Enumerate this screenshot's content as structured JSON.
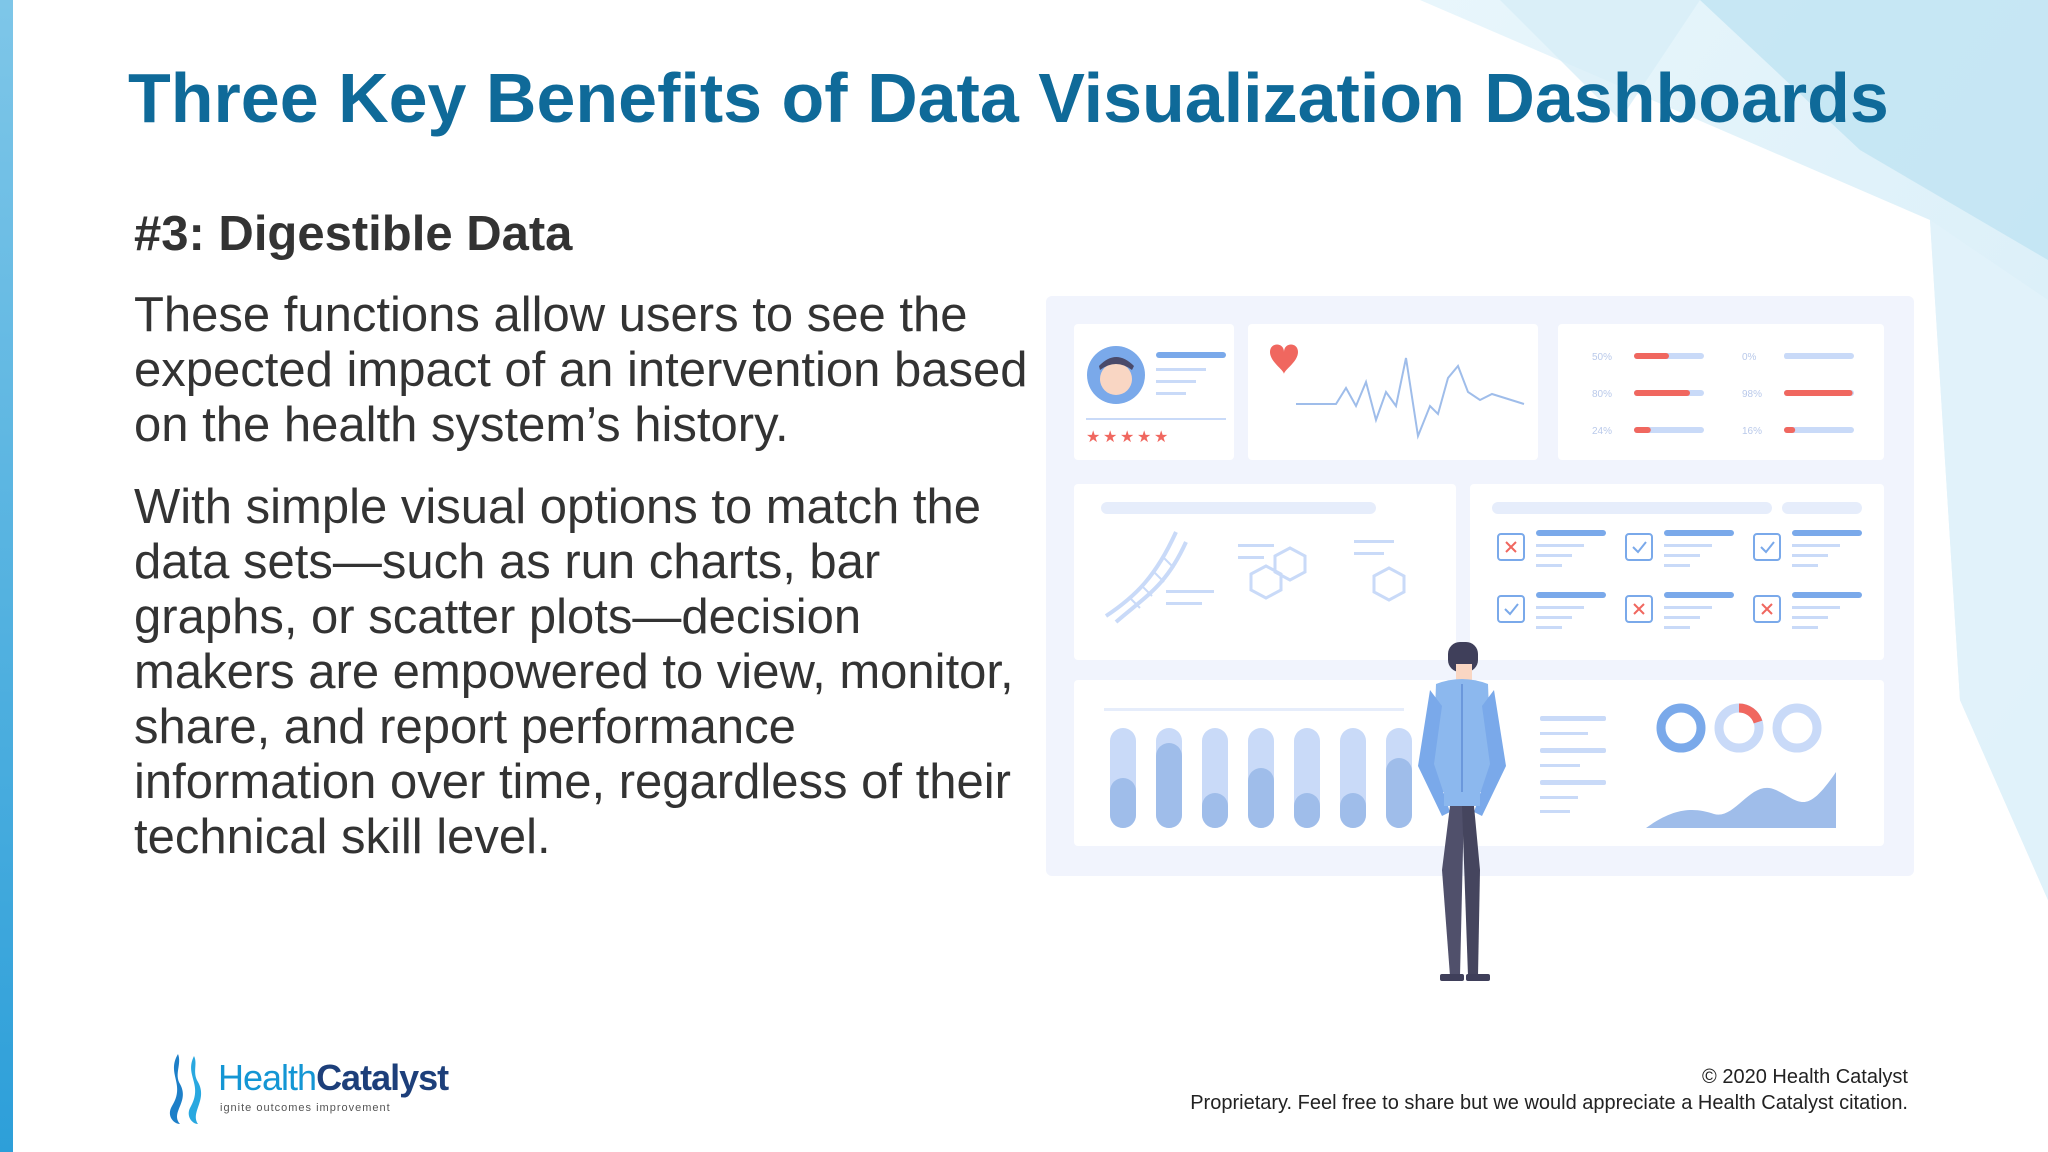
{
  "slide": {
    "title": "Three Key Benefits of Data Visualization Dashboards",
    "subtitle": "#3: Digestible Data",
    "paragraph_1": "These functions allow users to see the expected impact of an intervention based on the health system’s history.",
    "paragraph_2": "With simple visual options to match the data sets—such as run charts, bar graphs, or scatter plots—decision makers are empowered to view, monitor, share, and report performance information over time, regardless of their technical skill level."
  },
  "illustration": {
    "progress_rows": [
      {
        "label": "50%",
        "value": 0.5
      },
      {
        "label": "80%",
        "value": 0.8
      },
      {
        "label": "24%",
        "value": 0.24
      },
      {
        "label": "0%",
        "value": 0.0
      },
      {
        "label": "98%",
        "value": 0.98
      },
      {
        "label": "16%",
        "value": 0.16
      }
    ],
    "rating_stars": 5,
    "bar_fill_levels": [
      0.5,
      0.85,
      0.35,
      0.6,
      0.35,
      0.35,
      0.7
    ],
    "colors": {
      "accent": "#f0675f",
      "primary": "#7aa9ea",
      "light": "#c9daf8",
      "panel": "#f1f4fd"
    }
  },
  "footer": {
    "copyright": "© 2020 Health Catalyst",
    "notice": "Proprietary. Feel free to share but we would appreciate a Health Catalyst citation."
  },
  "logo": {
    "name_part_1": "Health",
    "name_part_2": "Catalyst",
    "tagline": "ignite outcomes improvement"
  }
}
